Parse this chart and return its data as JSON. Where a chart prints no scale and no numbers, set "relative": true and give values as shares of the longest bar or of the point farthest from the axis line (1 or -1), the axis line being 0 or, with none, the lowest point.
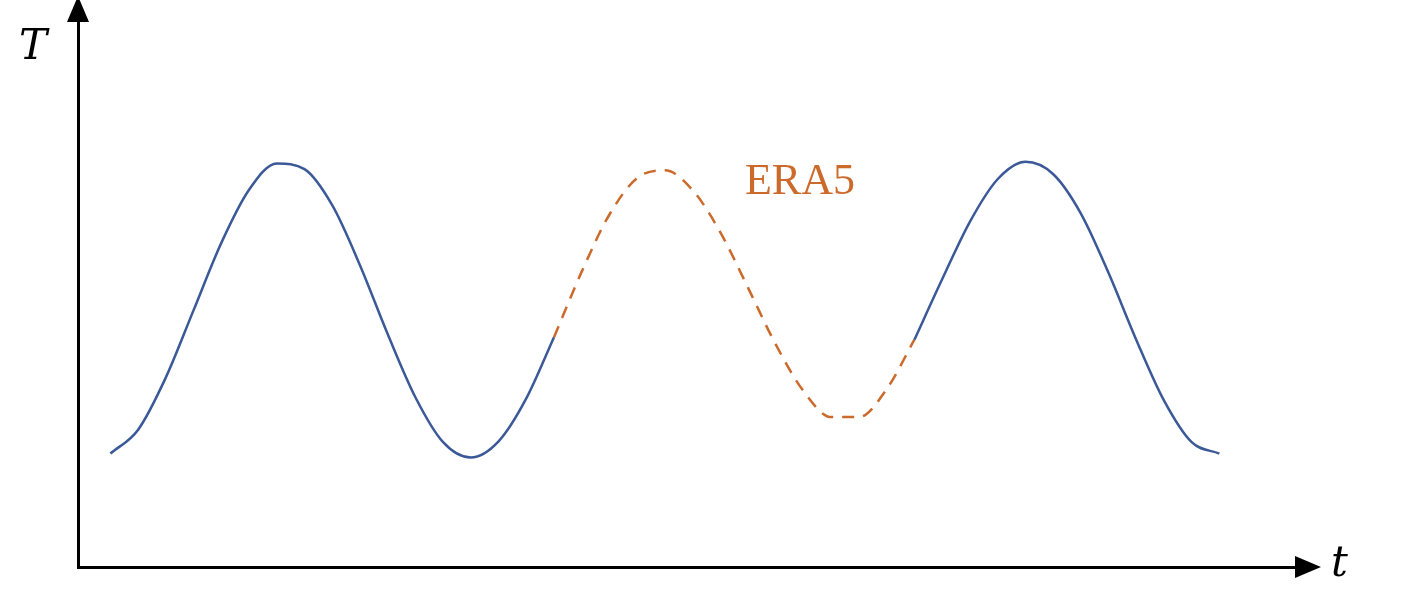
{
  "chart_data": {
    "type": "line",
    "relative": true,
    "xlabel": "t",
    "ylabel": "T",
    "legend": false,
    "marker": "none",
    "grid": false,
    "categories": [
      null,
      null,
      null,
      null,
      null,
      null,
      null,
      null,
      null,
      null,
      null,
      null,
      null,
      null,
      null,
      null,
      null,
      null,
      null,
      null,
      null,
      null,
      null,
      null,
      null,
      null,
      null,
      null,
      null,
      null,
      null,
      null,
      null,
      null,
      null,
      null,
      null,
      null,
      null,
      null,
      null
    ],
    "series": [
      {
        "color": "#3b5998",
        "line_style": "solid",
        "values": [
          0.28,
          0.339,
          0.468,
          0.634,
          0.8,
          0.931,
          0.996,
          0.982,
          0.893,
          0.745,
          0.575,
          0.419,
          0.308,
          0.27,
          0.31,
          0.416,
          0.567,
          null,
          null,
          null,
          null,
          null,
          null,
          null,
          null,
          null,
          null,
          null,
          null,
          0.561,
          0.71,
          0.852,
          0.957,
          1.0,
          0.97,
          0.873,
          0.726,
          0.561,
          0.411,
          0.308,
          0.28
        ]
      },
      {
        "name": "ERA5",
        "color": "#cc6a2c",
        "line_style": "dashed",
        "values": [
          null,
          null,
          null,
          null,
          null,
          null,
          null,
          null,
          null,
          null,
          null,
          null,
          null,
          null,
          null,
          null,
          0.567,
          0.729,
          0.87,
          0.96,
          0.979,
          0.93,
          0.826,
          0.689,
          0.549,
          0.434,
          0.37,
          0.37,
          0.439,
          0.561,
          null,
          null,
          null,
          null,
          null,
          null,
          null,
          null,
          null,
          null,
          null
        ]
      }
    ]
  }
}
